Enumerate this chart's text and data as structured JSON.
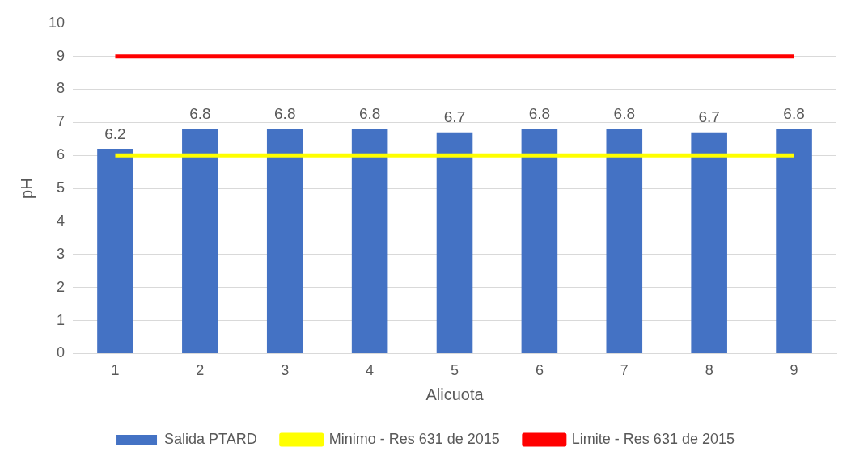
{
  "chart_data": {
    "type": "bar",
    "xlabel": "Alicuota",
    "ylabel": "pH",
    "categories": [
      "1",
      "2",
      "3",
      "4",
      "5",
      "6",
      "7",
      "8",
      "9"
    ],
    "series": [
      {
        "name": "Salida PTARD",
        "color": "#4472c4",
        "values": [
          6.2,
          6.8,
          6.8,
          6.8,
          6.7,
          6.8,
          6.8,
          6.7,
          6.8
        ],
        "value_labels": [
          "6.2",
          "6.8",
          "6.8",
          "6.8",
          "6.7",
          "6.8",
          "6.8",
          "6.7",
          "6.8"
        ]
      },
      {
        "name": "Minimo - Res 631 de 2015",
        "type": "line",
        "color": "#ffff00",
        "values": [
          6,
          6,
          6,
          6,
          6,
          6,
          6,
          6,
          6
        ],
        "marker": "none"
      },
      {
        "name": "Limite - Res 631 de 2015",
        "type": "line",
        "color": "#ff0000",
        "values": [
          9,
          9,
          9,
          9,
          9,
          9,
          9,
          9,
          9
        ],
        "marker": "none"
      }
    ],
    "ylim": [
      0,
      10
    ],
    "yticks": [
      0,
      1,
      2,
      3,
      4,
      5,
      6,
      7,
      8,
      9,
      10
    ],
    "grid": "y",
    "legend": "bottom"
  }
}
